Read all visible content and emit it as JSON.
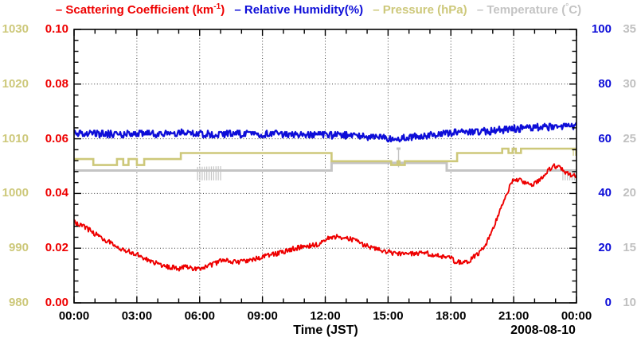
{
  "legend": {
    "items": [
      {
        "marker": "–",
        "text": "Scattering Coefficient (km",
        "sup": "-1",
        "tail": ")",
        "color": "#ee0000"
      },
      {
        "marker": "–",
        "text": "Relative Humidity(%)",
        "color": "#0d0dd8"
      },
      {
        "marker": "–",
        "text": "Pressure (hPa)",
        "color": "#cdc87a"
      },
      {
        "marker": "–",
        "text": "Temperature (",
        "deg": "°",
        "tail": "C)",
        "color": "#c4c4c4"
      }
    ]
  },
  "x_axis": {
    "tick_labels": [
      "00:00",
      "03:00",
      "06:00",
      "09:00",
      "12:00",
      "15:00",
      "18:00",
      "21:00",
      "00:00"
    ],
    "title": "Time (JST)",
    "date": "2008-08-10"
  },
  "y_axes": {
    "pressure": {
      "labels": [
        "1030",
        "1020",
        "1010",
        "1000",
        "990",
        "980"
      ],
      "color": "#cdc87a"
    },
    "scattering": {
      "labels": [
        "0.10",
        "0.08",
        "0.06",
        "0.04",
        "0.02",
        "0.00"
      ],
      "color": "#ee0000"
    },
    "humidity": {
      "labels": [
        "100",
        "80",
        "60",
        "40",
        "20",
        "0"
      ],
      "color": "#0d0dd8"
    },
    "temperature": {
      "labels": [
        "35",
        "30",
        "25",
        "20",
        "15",
        "10"
      ],
      "color": "#c0c0c0"
    }
  },
  "chart_data": {
    "type": "line",
    "title": "– Scattering Coefficient (km-1) – Relative Humidity(%) – Pressure (hPa) – Temperature (C)",
    "xlabel": "Time (JST)",
    "date": "2008-08-10",
    "x_range_hours": [
      0,
      24
    ],
    "x_major_tick_hours": 3,
    "x_minor_tick_hours": 1,
    "grid": "dotted at major ticks",
    "axes": {
      "scattering": {
        "label": "Scattering Coefficient (km-1)",
        "side": "left-inner",
        "min": 0,
        "max": 0.1,
        "ticks": [
          0,
          0.02,
          0.04,
          0.06,
          0.08,
          0.1
        ]
      },
      "pressure": {
        "label": "Pressure (hPa)",
        "side": "left-outer",
        "min": 980,
        "max": 1030,
        "ticks": [
          980,
          990,
          1000,
          1010,
          1020,
          1030
        ]
      },
      "humidity": {
        "label": "Relative Humidity(%)",
        "side": "right-inner",
        "min": 0,
        "max": 100,
        "ticks": [
          0,
          20,
          40,
          60,
          80,
          100
        ]
      },
      "temperature": {
        "label": "Temperature (C)",
        "side": "right-outer",
        "min": 10,
        "max": 35,
        "ticks": [
          10,
          15,
          20,
          25,
          30,
          35
        ]
      }
    },
    "series": [
      {
        "name": "Scattering Coefficient",
        "axis": "scattering",
        "color": "#ee0000",
        "style": "noisy-line",
        "noise_amp": 0.0009,
        "points": [
          [
            0,
            0.0295
          ],
          [
            0.3,
            0.0285
          ],
          [
            0.7,
            0.0268
          ],
          [
            1,
            0.0252
          ],
          [
            1.5,
            0.023
          ],
          [
            2,
            0.0208
          ],
          [
            2.5,
            0.019
          ],
          [
            3,
            0.0177
          ],
          [
            3.5,
            0.0158
          ],
          [
            4,
            0.0143
          ],
          [
            4.5,
            0.0132
          ],
          [
            5,
            0.0126
          ],
          [
            5.3,
            0.013
          ],
          [
            5.6,
            0.0126
          ],
          [
            6,
            0.0125
          ],
          [
            6.3,
            0.0132
          ],
          [
            6.6,
            0.014
          ],
          [
            7,
            0.0152
          ],
          [
            7.2,
            0.0158
          ],
          [
            7.5,
            0.0152
          ],
          [
            7.8,
            0.0148
          ],
          [
            8,
            0.0151
          ],
          [
            8.5,
            0.0157
          ],
          [
            9,
            0.0168
          ],
          [
            9.5,
            0.0177
          ],
          [
            10,
            0.0187
          ],
          [
            10.5,
            0.0198
          ],
          [
            11,
            0.0207
          ],
          [
            11.3,
            0.021
          ],
          [
            11.6,
            0.0213
          ],
          [
            12,
            0.0232
          ],
          [
            12.3,
            0.024
          ],
          [
            12.6,
            0.0243
          ],
          [
            13,
            0.0238
          ],
          [
            13.3,
            0.023
          ],
          [
            13.6,
            0.0222
          ],
          [
            14,
            0.0207
          ],
          [
            14.5,
            0.0194
          ],
          [
            15,
            0.0186
          ],
          [
            15.5,
            0.018
          ],
          [
            16,
            0.0183
          ],
          [
            16.3,
            0.0178
          ],
          [
            16.7,
            0.0181
          ],
          [
            17,
            0.018
          ],
          [
            17.4,
            0.0173
          ],
          [
            17.8,
            0.0168
          ],
          [
            18,
            0.0164
          ],
          [
            18.2,
            0.0152
          ],
          [
            18.5,
            0.0147
          ],
          [
            18.8,
            0.015
          ],
          [
            19,
            0.0162
          ],
          [
            19.3,
            0.018
          ],
          [
            19.6,
            0.0205
          ],
          [
            20,
            0.0265
          ],
          [
            20.3,
            0.033
          ],
          [
            20.6,
            0.0385
          ],
          [
            20.9,
            0.044
          ],
          [
            21,
            0.0455
          ],
          [
            21.2,
            0.0452
          ],
          [
            21.5,
            0.044
          ],
          [
            21.8,
            0.0428
          ],
          [
            22,
            0.0435
          ],
          [
            22.3,
            0.0455
          ],
          [
            22.6,
            0.048
          ],
          [
            22.8,
            0.0497
          ],
          [
            23,
            0.05
          ],
          [
            23.2,
            0.0492
          ],
          [
            23.5,
            0.0478
          ],
          [
            23.7,
            0.0468
          ],
          [
            24,
            0.0462
          ]
        ]
      },
      {
        "name": "Relative Humidity",
        "axis": "humidity",
        "color": "#0d0dd8",
        "style": "noisy-band",
        "noise_amp": 1.3,
        "quantize": 0.5,
        "points": [
          [
            0,
            61.8
          ],
          [
            1,
            62.0
          ],
          [
            2,
            61.7
          ],
          [
            3,
            62.0
          ],
          [
            4,
            61.9
          ],
          [
            5,
            62.1
          ],
          [
            6,
            62.3
          ],
          [
            6.4,
            61.6
          ],
          [
            7,
            62.0
          ],
          [
            8,
            61.9
          ],
          [
            9,
            61.7
          ],
          [
            10,
            61.5
          ],
          [
            11,
            61.5
          ],
          [
            12,
            61.4
          ],
          [
            13,
            61.2
          ],
          [
            14,
            60.9
          ],
          [
            14.6,
            60.4
          ],
          [
            15.2,
            59.7
          ],
          [
            15.7,
            60.3
          ],
          [
            16,
            60.7
          ],
          [
            16.5,
            60.9
          ],
          [
            17,
            61.3
          ],
          [
            17.5,
            61.8
          ],
          [
            18,
            62.2
          ],
          [
            19,
            62.5
          ],
          [
            20,
            62.9
          ],
          [
            21,
            63.6
          ],
          [
            22,
            64.1
          ],
          [
            23,
            64.5
          ],
          [
            23.9,
            64.8
          ],
          [
            24,
            65.0
          ]
        ]
      },
      {
        "name": "Pressure",
        "axis": "pressure",
        "color": "#cdc87a",
        "style": "step",
        "points": [
          [
            0,
            1006.3
          ],
          [
            0.92,
            1005.2
          ],
          [
            2.05,
            1006.3
          ],
          [
            2.35,
            1005.2
          ],
          [
            2.6,
            1006.3
          ],
          [
            3.0,
            1005.2
          ],
          [
            3.35,
            1006.3
          ],
          [
            5.1,
            1007.4
          ],
          [
            12.3,
            1005.9
          ],
          [
            15.15,
            1005.2
          ],
          [
            15.45,
            1005.9
          ],
          [
            15.55,
            1005.2
          ],
          [
            15.8,
            1005.9
          ],
          [
            18.3,
            1007.4
          ],
          [
            20.45,
            1008.2
          ],
          [
            20.75,
            1007.4
          ],
          [
            20.95,
            1008.2
          ],
          [
            21.1,
            1007.4
          ],
          [
            21.35,
            1008.2
          ],
          [
            24,
            1008.2
          ]
        ],
        "combs": [
          {
            "t1": 23.85,
            "t2": 24.0,
            "dip": 1006.9
          }
        ]
      },
      {
        "name": "Temperature",
        "axis": "temperature",
        "color": "#c4c4c4",
        "style": "step",
        "points": [
          [
            0,
            22.1
          ],
          [
            12.3,
            22.8
          ],
          [
            17.8,
            22.1
          ],
          [
            24,
            22.1
          ]
        ],
        "combs": [
          {
            "t1": 5.9,
            "t2": 7.05,
            "dip": 21.2
          },
          {
            "t1": 23.35,
            "t2": 23.95,
            "dip": 21.2
          }
        ],
        "spikes": [
          {
            "t": 15.5,
            "value": 24.1
          }
        ]
      }
    ]
  }
}
